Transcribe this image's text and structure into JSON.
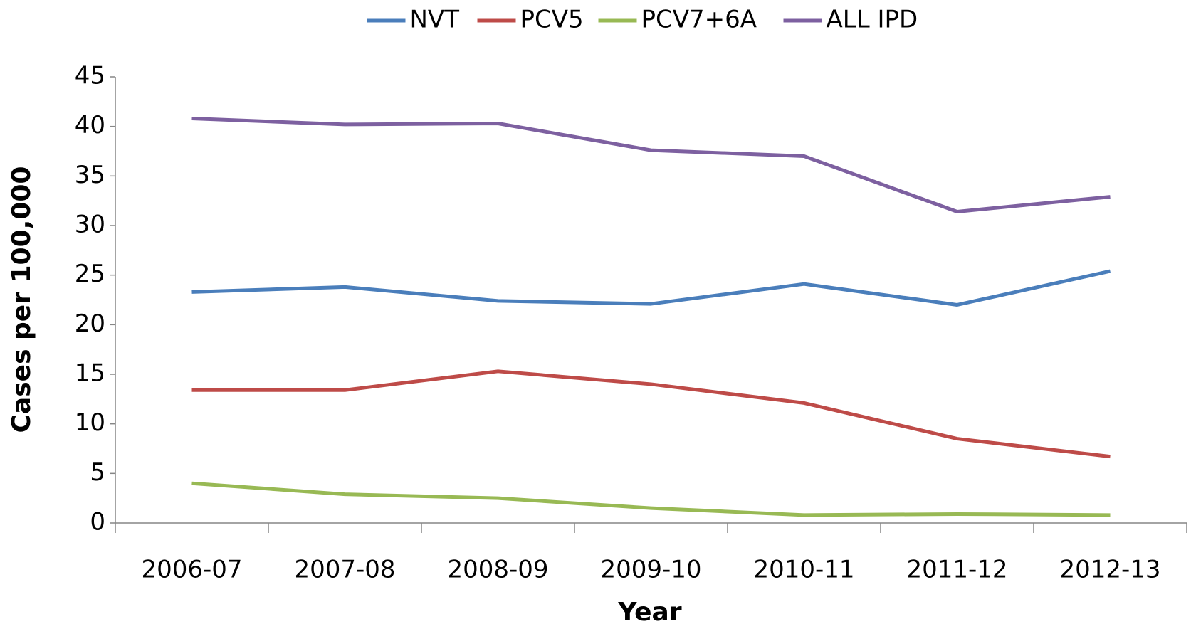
{
  "chart_data": {
    "type": "line",
    "x_label": "Year",
    "y_label": "Cases per 100,000",
    "categories": [
      "2006-07",
      "2007-08",
      "2008-09",
      "2009-10",
      "2010-11",
      "2011-12",
      "2012-13"
    ],
    "series": [
      {
        "name": "NVT",
        "color": "#4a7ebb",
        "values": [
          23.3,
          23.8,
          22.4,
          22.1,
          24.1,
          22.0,
          25.4
        ]
      },
      {
        "name": "PCV5",
        "color": "#be4b48",
        "values": [
          13.4,
          13.4,
          15.3,
          14.0,
          12.1,
          8.5,
          6.7
        ]
      },
      {
        "name": "PCV7+6A",
        "color": "#98b954",
        "values": [
          4.0,
          2.9,
          2.5,
          1.5,
          0.8,
          0.9,
          0.8
        ]
      },
      {
        "name": "ALL IPD",
        "color": "#7d60a0",
        "values": [
          40.8,
          40.2,
          40.3,
          37.6,
          37.0,
          31.4,
          32.9
        ]
      }
    ],
    "ylim": [
      0,
      45
    ],
    "yticks": [
      0,
      5,
      10,
      15,
      20,
      25,
      30,
      35,
      40,
      45
    ],
    "legend": "top"
  }
}
